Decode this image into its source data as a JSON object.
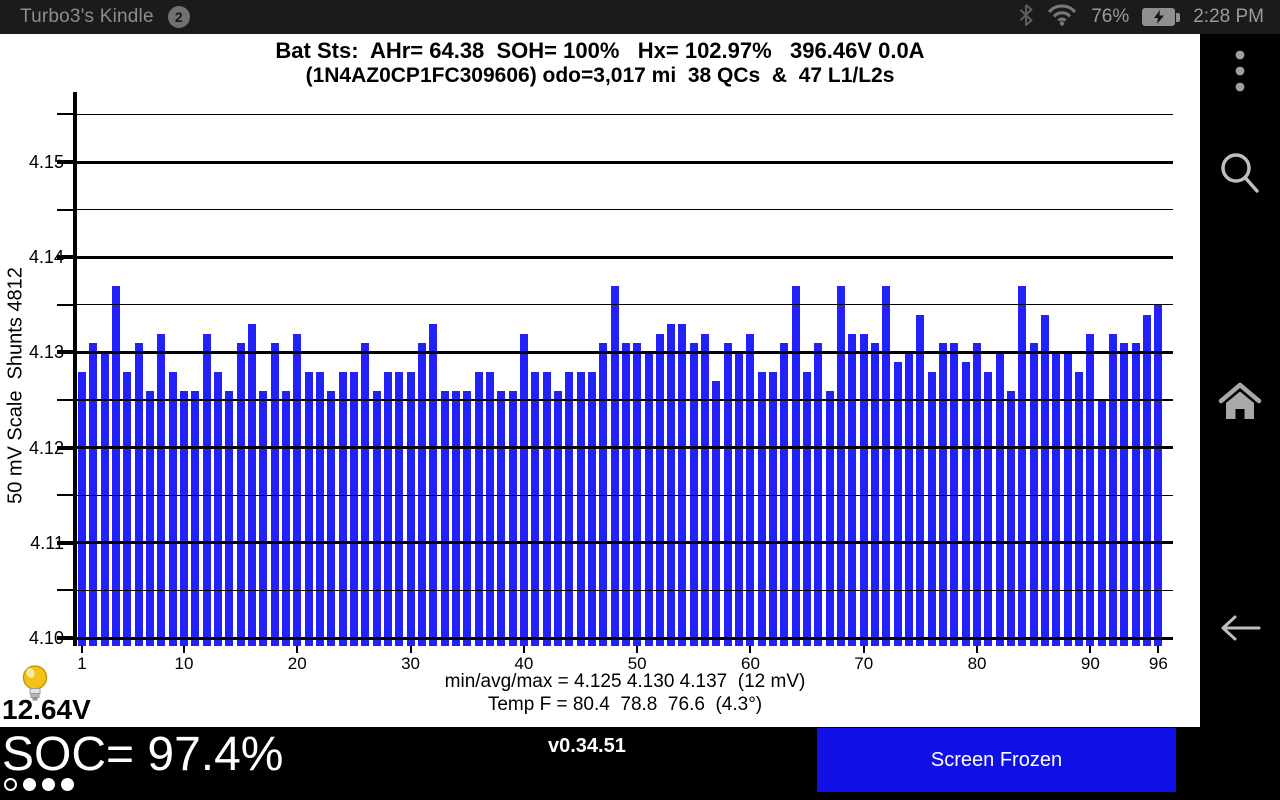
{
  "status_bar": {
    "device_name": "Turbo3's Kindle",
    "notification_count": "2",
    "battery_percent": "76%",
    "time": "2:28 PM"
  },
  "header": {
    "line1": "Bat Sts:  AHr= 64.38  SOH= 100%   Hx= 102.97%   396.46V 0.0A",
    "line2": "(1N4AZ0CP1FC309606) odo=3,017 mi  38 QCs  &  47 L1/L2s"
  },
  "chart_data": {
    "type": "bar",
    "title": "Bat Sts:  AHr= 64.38  SOH= 100%   Hx= 102.97%   396.46V 0.0A",
    "subtitle": "(1N4AZ0CP1FC309606) odo=3,017 mi  38 QCs  &  47 L1/L2s",
    "ylabel": "50 mV Scale  Shunts 4812",
    "ylim": [
      4.1,
      4.155
    ],
    "y_ticks": [
      4.15,
      4.14,
      4.13,
      4.12,
      4.11,
      4.1
    ],
    "x_ticks": [
      1,
      10,
      20,
      30,
      40,
      50,
      60,
      70,
      80,
      90,
      96
    ],
    "grid": true,
    "legend": "none",
    "bar_color": "#2222f8",
    "values": [
      4.128,
      4.131,
      4.13,
      4.137,
      4.128,
      4.131,
      4.126,
      4.132,
      4.128,
      4.126,
      4.126,
      4.132,
      4.128,
      4.126,
      4.131,
      4.133,
      4.126,
      4.131,
      4.126,
      4.132,
      4.128,
      4.128,
      4.126,
      4.128,
      4.128,
      4.131,
      4.126,
      4.128,
      4.128,
      4.128,
      4.131,
      4.133,
      4.126,
      4.126,
      4.126,
      4.128,
      4.128,
      4.126,
      4.126,
      4.132,
      4.128,
      4.128,
      4.126,
      4.128,
      4.128,
      4.128,
      4.131,
      4.137,
      4.131,
      4.131,
      4.13,
      4.132,
      4.133,
      4.133,
      4.131,
      4.132,
      4.127,
      4.131,
      4.13,
      4.132,
      4.128,
      4.128,
      4.131,
      4.137,
      4.128,
      4.131,
      4.126,
      4.137,
      4.132,
      4.132,
      4.131,
      4.137,
      4.129,
      4.13,
      4.134,
      4.128,
      4.131,
      4.131,
      4.129,
      4.131,
      4.128,
      4.13,
      4.126,
      4.137,
      4.131,
      4.134,
      4.13,
      4.13,
      4.128,
      4.132,
      4.125,
      4.132,
      4.131,
      4.131,
      4.134,
      4.135
    ],
    "stats_line": "min/avg/max = 4.125 4.130 4.137  (12 mV)",
    "temp_line": "Temp F = 80.4  78.8  76.6  (4.3°)"
  },
  "footer": {
    "aux_battery_voltage": "12.64V"
  },
  "bottom_bar": {
    "soc": "SOC= 97.4%",
    "version": "v0.34.51",
    "freeze_button_label": "Screen Frozen",
    "freeze_button_color": "#0f0fe6",
    "page_indicator": {
      "total": 4,
      "current": 1
    }
  }
}
